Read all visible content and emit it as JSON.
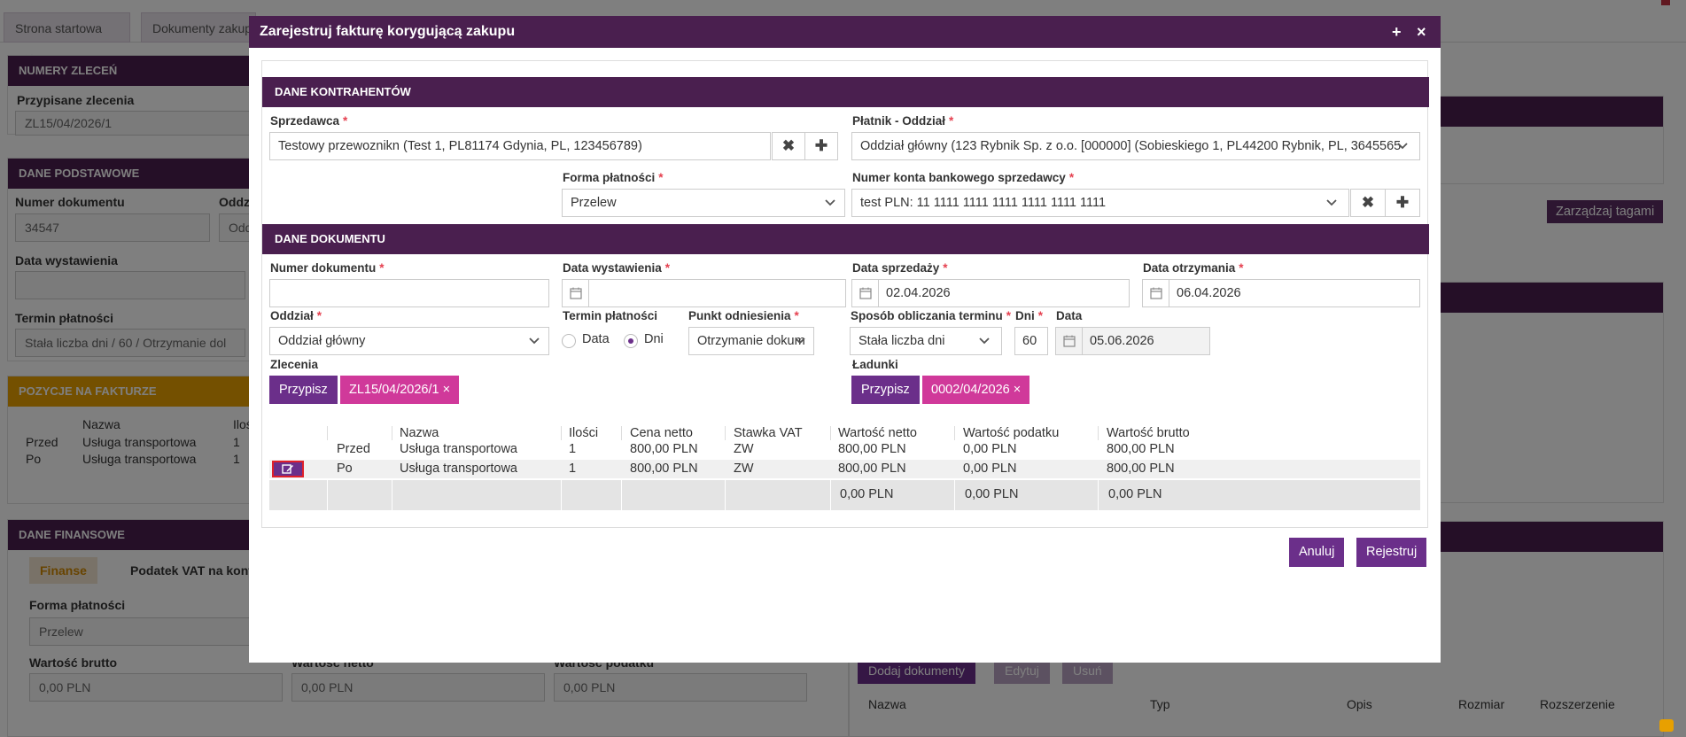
{
  "background": {
    "tabs": [
      "Strona startowa",
      "Dokumenty zakupu"
    ],
    "sections": {
      "numery_zlecen": "NUMERY ZLECEŃ",
      "przypisane_zlecenia_label": "Przypisane zlecenia",
      "przypisane_zlecenia_value": "ZL15/04/2026/1",
      "dane_podstawowe": "DANE PODSTAWOWE",
      "numer_dokumentu_label": "Numer dokumentu",
      "numer_dokumentu_value": "34547",
      "oddzial_label_part": "Oddz",
      "oddzial_value_part": "Oddz",
      "data_wystawienia_label": "Data wystawienia",
      "termin_platnosci_label": "Termin płatności",
      "termin_platnosci_value": "Stała liczba dni / 60 / Otrzymanie dol",
      "pozycje": "POZYCJE NA FAKTURZE",
      "poz_nazwa": "Nazwa",
      "poz_ilosc": "Iloś",
      "poz_rows": [
        {
          "a": "Przed",
          "b": "Usługa transportowa",
          "c": "1"
        },
        {
          "a": "Po",
          "b": "Usługa transportowa",
          "c": "1"
        }
      ],
      "dane_finansowe": "DANE FINANSOWE",
      "fin_tabs": [
        "Finanse",
        "Podatek VAT na konto"
      ],
      "forma_platnosci_label": "Forma płatności",
      "forma_platnosci_value": "Przelew",
      "wartosc_brutto_label": "Wartość brutto",
      "wartosc_netto_label": "Wartość netto",
      "wartosc_podatku_label": "Wartość podatku",
      "zero_pln": "0,00 PLN",
      "zarzadzaj_tagami": "Zarządzaj tagami",
      "dodaj_dokumenty": "Dodaj dokumenty",
      "edytuj": "Edytuj",
      "usun": "Usuń",
      "doc_cols": [
        "Nazwa",
        "Typ",
        "Opis",
        "Rozmiar",
        "Rozszerzenie"
      ]
    }
  },
  "modal": {
    "title": "Zarejestruj fakturę korygującą zakupu",
    "plus_icon": "+",
    "close_icon": "×",
    "sec_kontrahenci": "DANE KONTRAHENTÓW",
    "sprzedawca_label": "Sprzedawca",
    "sprzedawca_value": "Testowy przewoznikn (Test 1, PL81174 Gdynia, PL, 123456789)",
    "platnik_label": "Płatnik - Oddział",
    "platnik_value": "Oddział główny (123 Rybnik Sp. z o.o. [000000] (Sobieskiego 1, PL44200 Rybnik, PL, 3645565",
    "forma_platnosci_label": "Forma płatności",
    "forma_platnosci_value": "Przelew",
    "konto_label": "Numer konta bankowego sprzedawcy",
    "konto_value": "test PLN: 11 1111 1111 1111 1111 1111 1111",
    "sec_dokument": "DANE DOKUMENTU",
    "numer_dok_label": "Numer dokumentu",
    "numer_dok_value": "",
    "data_wyst_label": "Data wystawienia",
    "data_wyst_value": "",
    "data_sprz_label": "Data sprzedaży",
    "data_sprz_value": "02.04.2026",
    "data_otrz_label": "Data otrzymania",
    "data_otrz_value": "06.04.2026",
    "oddzial_label": "Oddział",
    "oddzial_value": "Oddział główny",
    "termin_label": "Termin płatności",
    "radio_data": "Data",
    "radio_dni": "Dni",
    "radio_selected": "Dni",
    "punkt_label": "Punkt odniesienia",
    "punkt_value": "Otrzymanie dokum",
    "sposob_label": "Sposób obliczania terminu",
    "sposob_value": "Stała liczba dni",
    "dni_label": "Dni",
    "dni_value": "60",
    "data_label": "Data",
    "data_value": "05.06.2026",
    "zlecenia_label": "Zlecenia",
    "przypisz": "Przypisz",
    "zlecenie_tag": "ZL15/04/2026/1 ×",
    "ladunki_label": "Ładunki",
    "ladunek_tag": "0002/04/2026 ×",
    "table": {
      "columns": [
        "",
        "",
        "Nazwa",
        "Ilości",
        "Cena netto",
        "Stawka VAT",
        "Wartość netto",
        "Wartość podatku",
        "Wartość brutto"
      ],
      "rows": [
        {
          "typ": "Przed",
          "nazwa": "Usługa transportowa",
          "ilosc": "1",
          "cena": "800,00 PLN",
          "vat": "ZW",
          "netto": "800,00 PLN",
          "podatek": "0,00 PLN",
          "brutto": "800,00 PLN"
        },
        {
          "typ": "Po",
          "nazwa": "Usługa transportowa",
          "ilosc": "1",
          "cena": "800,00 PLN",
          "vat": "ZW",
          "netto": "800,00 PLN",
          "podatek": "0,00 PLN",
          "brutto": "800,00 PLN"
        }
      ],
      "totals": {
        "netto": "0,00 PLN",
        "podatek": "0,00 PLN",
        "brutto": "0,00 PLN"
      }
    },
    "anuluj": "Anuluj",
    "rejestruj": "Rejestruj"
  },
  "colors": {
    "header": "#4a1f4f",
    "button": "#6b2f8a",
    "tag": "#d0399a",
    "required": "#e5404f",
    "edit_border": "#e0202a"
  }
}
